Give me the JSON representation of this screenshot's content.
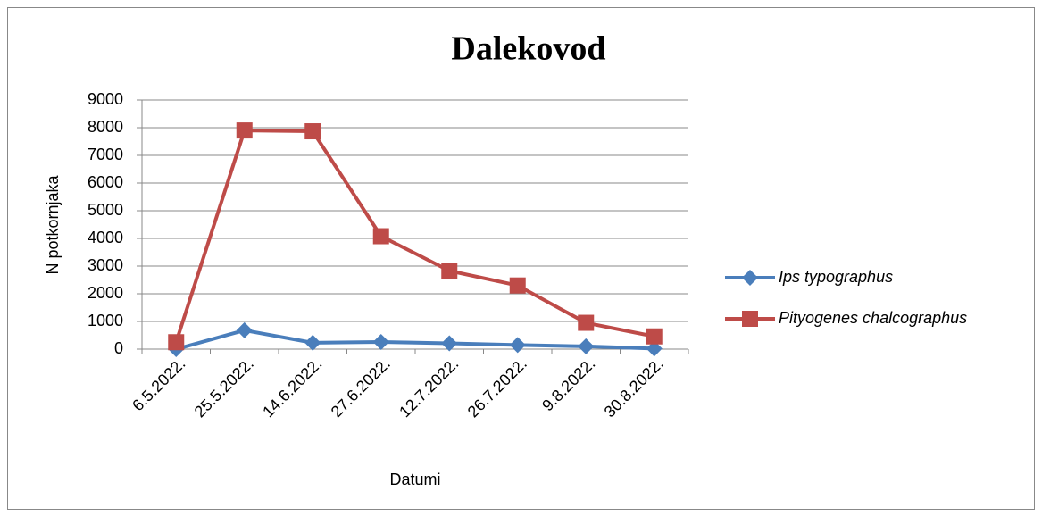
{
  "chart_data": {
    "type": "line",
    "title": "Dalekovod",
    "x_label": "Datumi",
    "y_label": "N potkornjaka",
    "categories": [
      "6.5.2022.",
      "25.5.2022.",
      "14.6.2022.",
      "27.6.2022.",
      "12.7.2022.",
      "26.7.2022.",
      "9.8.2022.",
      "30.8.2022."
    ],
    "series": [
      {
        "name": "Ips typographus",
        "color": "#4a7ebb",
        "marker": "diamond",
        "values": [
          0,
          680,
          230,
          260,
          210,
          150,
          100,
          20
        ]
      },
      {
        "name": "Pityogenes chalcographus",
        "color": "#be4b48",
        "marker": "square",
        "values": [
          250,
          7900,
          7870,
          4080,
          2830,
          2300,
          950,
          460
        ]
      }
    ],
    "ylim": [
      0,
      9000
    ],
    "yticks": [
      0,
      1000,
      2000,
      3000,
      4000,
      5000,
      6000,
      7000,
      8000,
      9000
    ],
    "grid": true,
    "legend": "right"
  }
}
